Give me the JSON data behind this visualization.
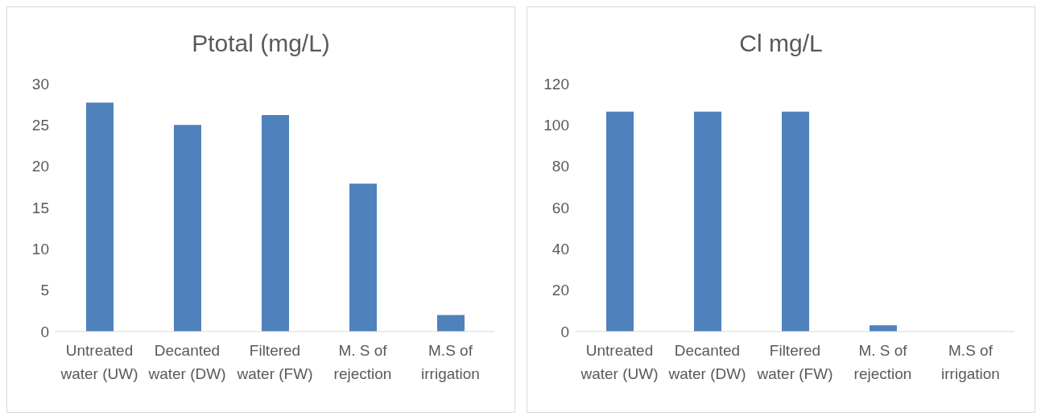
{
  "chart_data": [
    {
      "type": "bar",
      "title": "Ptotal (mg/L)",
      "categories": [
        "Untreated water (UW)",
        "Decanted water (DW)",
        "Filtered water (FW)",
        "M. S of rejection",
        "M.S of irrigation"
      ],
      "values": [
        27.7,
        25,
        26.2,
        17.9,
        2
      ],
      "color": "#4f81bd",
      "ylim": [
        0,
        30
      ],
      "yticks": [
        0,
        5,
        10,
        15,
        20,
        25,
        30
      ]
    },
    {
      "type": "bar",
      "title": "Cl mg/L",
      "categories": [
        "Untreated water (UW)",
        "Decanted water (DW)",
        "Filtered water (FW)",
        "M. S of rejection",
        "M.S of irrigation"
      ],
      "values": [
        106.5,
        106.5,
        106.5,
        3,
        0
      ],
      "color": "#4f81bd",
      "ylim": [
        0,
        120
      ],
      "yticks": [
        0,
        20,
        40,
        60,
        80,
        100,
        120
      ]
    }
  ]
}
